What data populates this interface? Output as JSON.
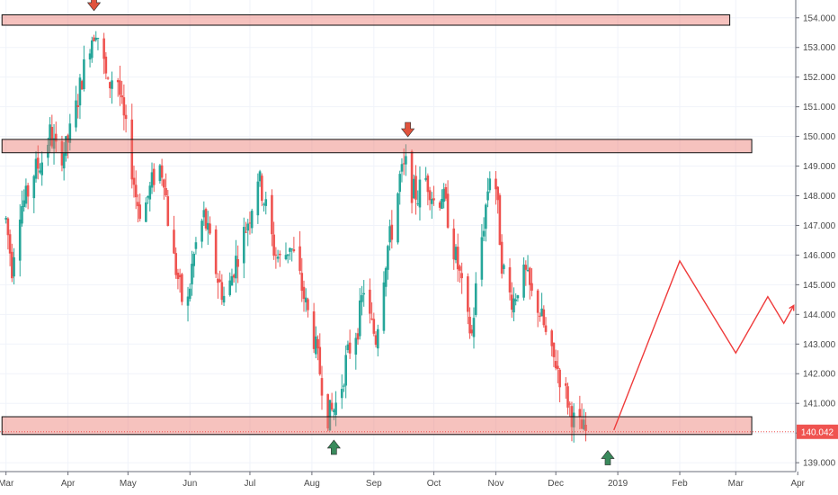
{
  "chart_data": {
    "type": "candlestick",
    "title": "",
    "ylim": [
      138.7,
      154.6
    ],
    "x_range_days": [
      -3,
      395
    ],
    "y_ticks": [
      "139.000",
      "140.000",
      "141.000",
      "142.000",
      "143.000",
      "144.000",
      "145.000",
      "146.000",
      "147.000",
      "148.000",
      "149.000",
      "150.000",
      "151.000",
      "152.000",
      "153.000",
      "154.000"
    ],
    "x_ticks": [
      {
        "label": "Mar",
        "day": 0
      },
      {
        "label": "Apr",
        "day": 31
      },
      {
        "label": "May",
        "day": 61
      },
      {
        "label": "Jun",
        "day": 92
      },
      {
        "label": "Jul",
        "day": 122
      },
      {
        "label": "Aug",
        "day": 153
      },
      {
        "label": "Sep",
        "day": 184
      },
      {
        "label": "Oct",
        "day": 214
      },
      {
        "label": "Nov",
        "day": 245
      },
      {
        "label": "Dec",
        "day": 275
      },
      {
        "label": "2019",
        "day": 306
      },
      {
        "label": "Feb",
        "day": 337
      },
      {
        "label": "Mar",
        "day": 365
      },
      {
        "label": "Apr",
        "day": 396
      }
    ],
    "last_price": "140.042",
    "last_price_value": 140.042,
    "zones": [
      {
        "y_low": 153.75,
        "y_high": 154.1,
        "x_start_day": -2,
        "x_end_day": 362
      },
      {
        "y_low": 149.45,
        "y_high": 149.9,
        "x_start_day": -2,
        "x_end_day": 373
      },
      {
        "y_low": 139.95,
        "y_high": 140.55,
        "x_start_day": -2,
        "x_end_day": 373
      }
    ],
    "arrows": [
      {
        "direction": "down",
        "color": "#e0533d",
        "day": 44,
        "y": 154.45
      },
      {
        "direction": "down",
        "color": "#e0533d",
        "day": 201,
        "y": 150.2
      },
      {
        "direction": "up",
        "color": "#3a8a5c",
        "day": 164,
        "y": 139.55
      },
      {
        "direction": "up",
        "color": "#3a8a5c",
        "day": 301,
        "y": 139.2
      }
    ],
    "projection": [
      {
        "day": 304,
        "y": 140.1
      },
      {
        "day": 337,
        "y": 145.8
      },
      {
        "day": 365,
        "y": 142.7
      },
      {
        "day": 381,
        "y": 144.6
      },
      {
        "day": 389,
        "y": 143.7
      },
      {
        "day": 394,
        "y": 144.3
      }
    ],
    "price_path": [
      [
        0,
        147.2
      ],
      [
        3,
        145.6
      ],
      [
        6,
        147.5
      ],
      [
        10,
        147.9
      ],
      [
        14,
        148.8
      ],
      [
        18,
        149.2
      ],
      [
        22,
        150.1
      ],
      [
        26,
        149.3
      ],
      [
        30,
        149.6
      ],
      [
        34,
        150.6
      ],
      [
        38,
        152.0
      ],
      [
        42,
        153.2
      ],
      [
        45,
        153.7
      ],
      [
        48,
        152.8
      ],
      [
        51,
        151.6
      ],
      [
        55,
        152.4
      ],
      [
        58,
        150.9
      ],
      [
        62,
        149.4
      ],
      [
        65,
        148.0
      ],
      [
        68,
        147.3
      ],
      [
        72,
        148.2
      ],
      [
        76,
        149.1
      ],
      [
        79,
        148.7
      ],
      [
        82,
        146.5
      ],
      [
        86,
        145.2
      ],
      [
        90,
        143.8
      ],
      [
        93,
        145.6
      ],
      [
        96,
        146.7
      ],
      [
        99,
        147.3
      ],
      [
        102,
        146.4
      ],
      [
        106,
        145.2
      ],
      [
        110,
        144.4
      ],
      [
        114,
        145.6
      ],
      [
        118,
        146.5
      ],
      [
        122,
        147.4
      ],
      [
        126,
        148.7
      ],
      [
        130,
        147.6
      ],
      [
        134,
        146.2
      ],
      [
        138,
        145.7
      ],
      [
        142,
        146.4
      ],
      [
        146,
        145.5
      ],
      [
        150,
        144.3
      ],
      [
        154,
        143.2
      ],
      [
        158,
        141.7
      ],
      [
        161,
        140.6
      ],
      [
        164,
        140.8
      ],
      [
        167,
        141.3
      ],
      [
        170,
        142.4
      ],
      [
        173,
        143.1
      ],
      [
        176,
        143.6
      ],
      [
        179,
        144.9
      ],
      [
        182,
        143.8
      ],
      [
        185,
        143.2
      ],
      [
        188,
        145.0
      ],
      [
        191,
        146.3
      ],
      [
        194,
        147.1
      ],
      [
        197,
        148.6
      ],
      [
        200,
        149.0
      ],
      [
        203,
        148.2
      ],
      [
        206,
        148.0
      ],
      [
        209,
        148.7
      ],
      [
        212,
        148.3
      ],
      [
        215,
        147.6
      ],
      [
        218,
        148.1
      ],
      [
        221,
        147.3
      ],
      [
        224,
        146.2
      ],
      [
        227,
        145.3
      ],
      [
        230,
        143.9
      ],
      [
        233,
        143.3
      ],
      [
        236,
        145.6
      ],
      [
        239,
        147.1
      ],
      [
        242,
        148.8
      ],
      [
        245,
        148.3
      ],
      [
        248,
        145.8
      ],
      [
        251,
        144.7
      ],
      [
        254,
        144.5
      ],
      [
        257,
        145.2
      ],
      [
        260,
        145.3
      ],
      [
        263,
        144.6
      ],
      [
        266,
        144.3
      ],
      [
        269,
        143.6
      ],
      [
        272,
        142.6
      ],
      [
        275,
        142.4
      ],
      [
        278,
        141.7
      ],
      [
        281,
        141.1
      ],
      [
        284,
        140.4
      ],
      [
        287,
        140.2
      ],
      [
        290,
        140.0
      ]
    ]
  }
}
